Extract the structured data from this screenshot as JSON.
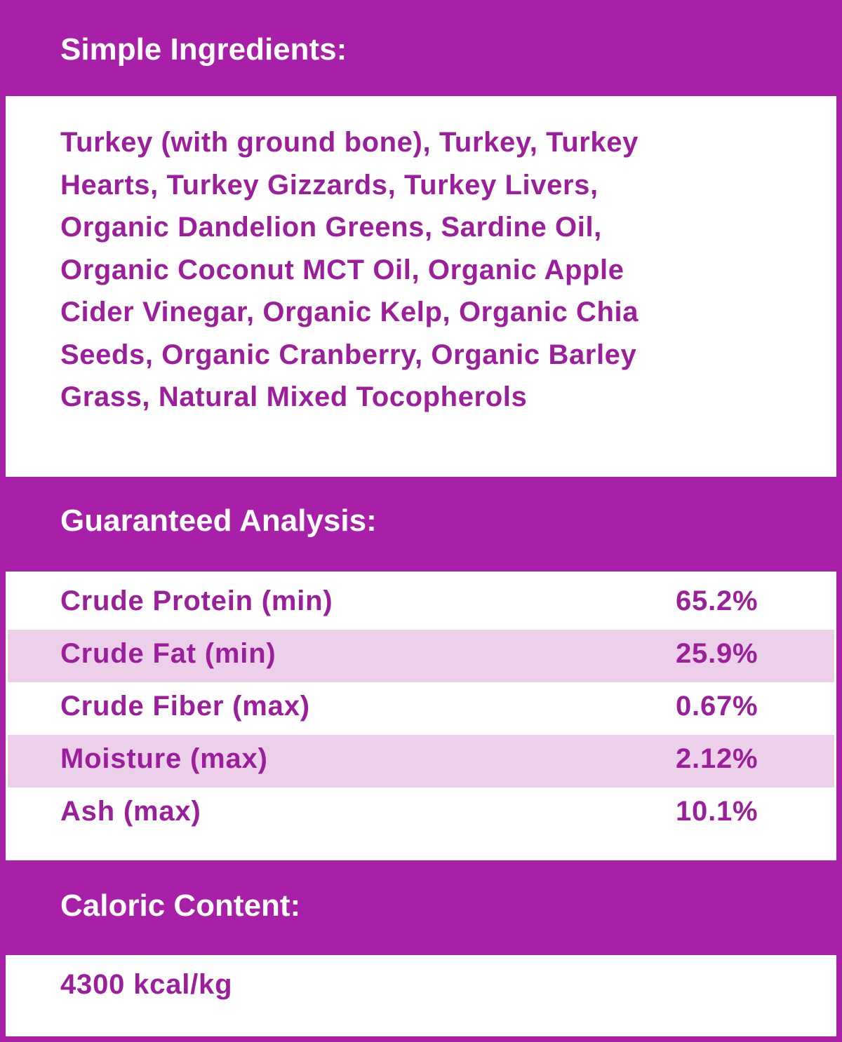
{
  "colors": {
    "header": "#a81fa8",
    "text": "#9b1f9b",
    "stripe": "#ecd0ea"
  },
  "ingredients": {
    "title": "Simple Ingredients:",
    "lines": [
      "Turkey (with ground bone), Turkey, Turkey",
      "Hearts, Turkey Gizzards, Turkey Livers,",
      "Organic Dandelion Greens, Sardine Oil,",
      "Organic Coconut MCT Oil, Organic Apple",
      "Cider Vinegar, Organic Kelp, Organic Chia",
      "Seeds, Organic Cranberry, Organic Barley",
      "Grass, Natural Mixed Tocopherols"
    ]
  },
  "analysis": {
    "title": "Guaranteed Analysis:",
    "rows": [
      {
        "label": "Crude Protein (min)",
        "value": "65.2%"
      },
      {
        "label": "Crude Fat (min)",
        "value": "25.9%"
      },
      {
        "label": "Crude Fiber (max)",
        "value": "0.67%"
      },
      {
        "label": "Moisture (max)",
        "value": "2.12%"
      },
      {
        "label": "Ash (max)",
        "value": "10.1%"
      }
    ]
  },
  "caloric": {
    "title": "Caloric Content:",
    "value": "4300 kcal/kg"
  }
}
